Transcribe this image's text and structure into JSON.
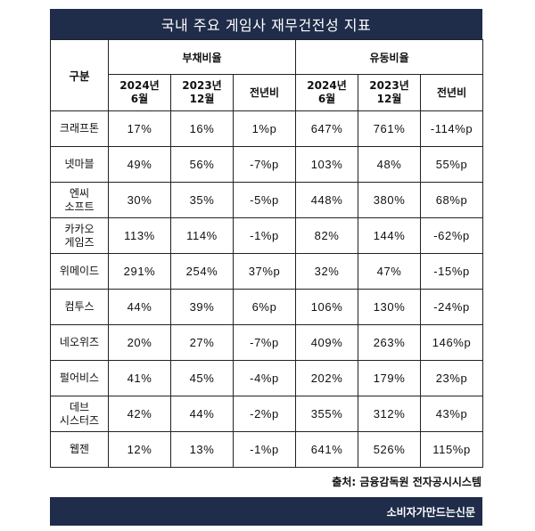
{
  "title": "국내 주요 게임사 재무건전성 지표",
  "header": {
    "category": "구분",
    "group1": "부채비율",
    "group2": "유동비율",
    "col_2024": "2024년\n6월",
    "col_2023": "2023년\n12월",
    "col_yoy": "전년비"
  },
  "rows": [
    {
      "company": "크래프톤",
      "debt_2024": "17%",
      "debt_2023": "16%",
      "debt_yoy": "1%p",
      "liq_2024": "647%",
      "liq_2023": "761%",
      "liq_yoy": "-114%p"
    },
    {
      "company": "넷마블",
      "debt_2024": "49%",
      "debt_2023": "56%",
      "debt_yoy": "-7%p",
      "liq_2024": "103%",
      "liq_2023": "48%",
      "liq_yoy": "55%p"
    },
    {
      "company": "엔씨\n소프트",
      "debt_2024": "30%",
      "debt_2023": "35%",
      "debt_yoy": "-5%p",
      "liq_2024": "448%",
      "liq_2023": "380%",
      "liq_yoy": "68%p"
    },
    {
      "company": "카카오\n게임즈",
      "debt_2024": "113%",
      "debt_2023": "114%",
      "debt_yoy": "-1%p",
      "liq_2024": "82%",
      "liq_2023": "144%",
      "liq_yoy": "-62%p"
    },
    {
      "company": "위메이드",
      "debt_2024": "291%",
      "debt_2023": "254%",
      "debt_yoy": "37%p",
      "liq_2024": "32%",
      "liq_2023": "47%",
      "liq_yoy": "-15%p"
    },
    {
      "company": "컴투스",
      "debt_2024": "44%",
      "debt_2023": "39%",
      "debt_yoy": "6%p",
      "liq_2024": "106%",
      "liq_2023": "130%",
      "liq_yoy": "-24%p"
    },
    {
      "company": "네오위즈",
      "debt_2024": "20%",
      "debt_2023": "27%",
      "debt_yoy": "-7%p",
      "liq_2024": "409%",
      "liq_2023": "263%",
      "liq_yoy": "146%p"
    },
    {
      "company": "펄어비스",
      "debt_2024": "41%",
      "debt_2023": "45%",
      "debt_yoy": "-4%p",
      "liq_2024": "202%",
      "liq_2023": "179%",
      "liq_yoy": "23%p"
    },
    {
      "company": "데브\n시스터즈",
      "debt_2024": "42%",
      "debt_2023": "44%",
      "debt_yoy": "-2%p",
      "liq_2024": "355%",
      "liq_2023": "312%",
      "liq_yoy": "43%p"
    },
    {
      "company": "웹젠",
      "debt_2024": "12%",
      "debt_2023": "13%",
      "debt_yoy": "-1%p",
      "liq_2024": "641%",
      "liq_2023": "526%",
      "liq_yoy": "115%p"
    }
  ],
  "source": "출처: 금융감독원 전자공시시스템",
  "footer": "소비자가만드는신문"
}
